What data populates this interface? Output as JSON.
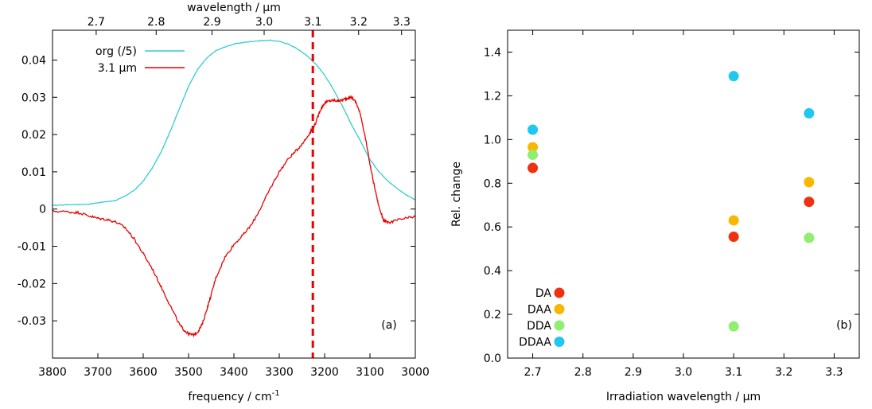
{
  "chart_data": [
    {
      "type": "line",
      "panel_label": "(a)",
      "xlabel": "frequency / cm",
      "xlabel_sup": "-1",
      "x2label": "wavelength / µm",
      "xlim": [
        3800,
        3000
      ],
      "ylim": [
        -0.04,
        0.048
      ],
      "xticks": [
        "3800",
        "3700",
        "3600",
        "3500",
        "3400",
        "3300",
        "3200",
        "3100",
        "3000"
      ],
      "yticks": [
        "-0.03",
        "-0.02",
        "-0.01",
        "0",
        "0.01",
        "0.02",
        "0.03",
        "0.04"
      ],
      "x2ticks": [
        "2.7",
        "2.8",
        "2.9",
        "3.0",
        "3.1",
        "3.2",
        "3.3"
      ],
      "vline": {
        "x": 3226,
        "label": "3.1 µm"
      },
      "legend_position": "top-left",
      "series": [
        {
          "name": "org (/5)",
          "color": "#33cccc",
          "x": [
            3800,
            3760,
            3720,
            3700,
            3680,
            3660,
            3640,
            3620,
            3600,
            3580,
            3560,
            3540,
            3520,
            3500,
            3480,
            3460,
            3440,
            3420,
            3400,
            3380,
            3360,
            3340,
            3320,
            3300,
            3280,
            3260,
            3240,
            3220,
            3200,
            3180,
            3160,
            3140,
            3120,
            3100,
            3080,
            3060,
            3040,
            3020,
            3000
          ],
          "y": [
            0.001,
            0.0012,
            0.0013,
            0.0017,
            0.002,
            0.0023,
            0.0035,
            0.005,
            0.0075,
            0.011,
            0.0155,
            0.021,
            0.027,
            0.033,
            0.0375,
            0.0405,
            0.0425,
            0.0435,
            0.0443,
            0.0447,
            0.045,
            0.0452,
            0.0453,
            0.045,
            0.0443,
            0.043,
            0.0413,
            0.039,
            0.036,
            0.032,
            0.0275,
            0.0225,
            0.018,
            0.0133,
            0.01,
            0.0075,
            0.0055,
            0.0038,
            0.0025
          ]
        },
        {
          "name": "3.1 µm",
          "color": "#e60000",
          "x": [
            3800,
            3760,
            3740,
            3720,
            3700,
            3680,
            3660,
            3640,
            3620,
            3600,
            3580,
            3560,
            3540,
            3520,
            3510,
            3500,
            3490,
            3480,
            3470,
            3460,
            3450,
            3440,
            3420,
            3400,
            3380,
            3360,
            3340,
            3320,
            3300,
            3280,
            3260,
            3240,
            3230,
            3220,
            3210,
            3200,
            3190,
            3180,
            3170,
            3160,
            3150,
            3140,
            3130,
            3120,
            3110,
            3100,
            3090,
            3080,
            3070,
            3060,
            3040,
            3020,
            3000
          ],
          "y": [
            -0.0005,
            -0.0008,
            -0.001,
            -0.0018,
            -0.0025,
            -0.0028,
            -0.0035,
            -0.005,
            -0.008,
            -0.012,
            -0.016,
            -0.021,
            -0.026,
            -0.031,
            -0.0325,
            -0.0335,
            -0.0338,
            -0.033,
            -0.031,
            -0.027,
            -0.023,
            -0.0185,
            -0.013,
            -0.0095,
            -0.007,
            -0.004,
            0.0005,
            0.0055,
            0.01,
            0.0135,
            0.016,
            0.019,
            0.021,
            0.023,
            0.0265,
            0.0285,
            0.029,
            0.0292,
            0.029,
            0.0293,
            0.0298,
            0.03,
            0.0285,
            0.025,
            0.019,
            0.012,
            0.006,
            0.0005,
            -0.003,
            -0.0037,
            -0.003,
            -0.0025,
            -0.002
          ]
        }
      ]
    },
    {
      "type": "scatter",
      "panel_label": "(b)",
      "xlabel": "Irradiation wavelength / µm",
      "ylabel": "Rel. change",
      "xlim": [
        2.65,
        3.35
      ],
      "ylim": [
        0.0,
        1.5
      ],
      "xticks": [
        "2.7",
        "2.8",
        "2.9",
        "3.0",
        "3.1",
        "3.2",
        "3.3"
      ],
      "yticks": [
        "0.0",
        "0.2",
        "0.4",
        "0.6",
        "0.8",
        "1.0",
        "1.2",
        "1.4"
      ],
      "legend_position": "bottom-left",
      "series": [
        {
          "name": "DA",
          "color": "#f03010",
          "x": [
            2.7,
            3.1,
            3.25
          ],
          "y": [
            0.87,
            0.555,
            0.715
          ]
        },
        {
          "name": "DAA",
          "color": "#f9b800",
          "x": [
            2.7,
            3.1,
            3.25
          ],
          "y": [
            0.965,
            0.63,
            0.805
          ]
        },
        {
          "name": "DDA",
          "color": "#90ee70",
          "x": [
            2.7,
            3.1,
            3.25
          ],
          "y": [
            0.93,
            0.145,
            0.55
          ]
        },
        {
          "name": "DDAA",
          "color": "#20c8f0",
          "x": [
            2.7,
            3.1,
            3.25
          ],
          "y": [
            1.045,
            1.29,
            1.12
          ]
        }
      ]
    }
  ]
}
